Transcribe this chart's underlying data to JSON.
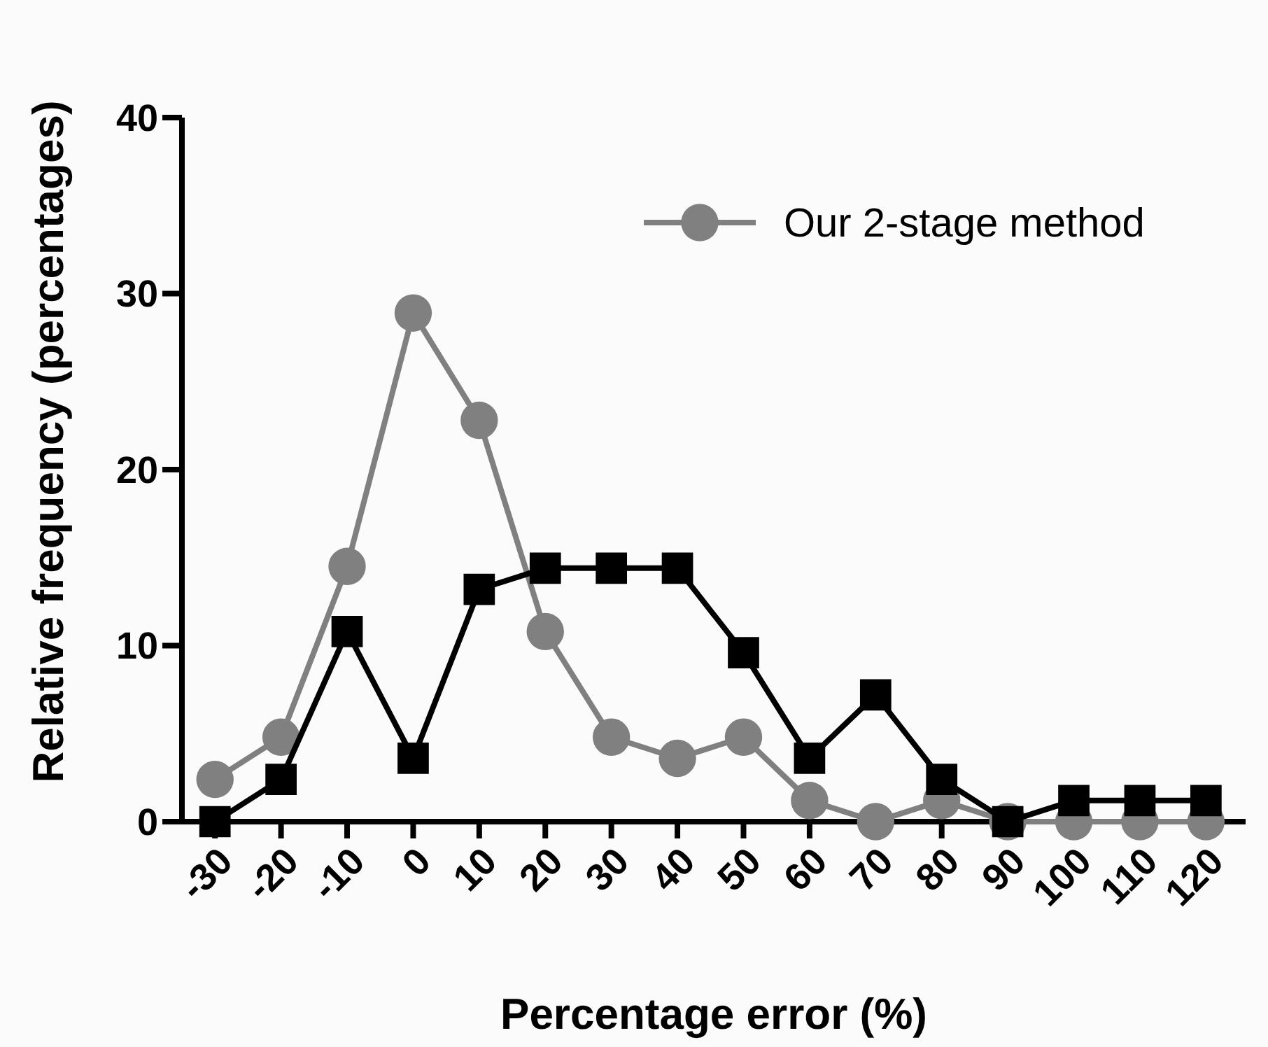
{
  "chart_data": {
    "type": "line",
    "xlabel": "Percentage error (%)",
    "ylabel": "Relative frequency (percentages)",
    "x": [
      -30,
      -20,
      -10,
      0,
      10,
      20,
      30,
      40,
      50,
      60,
      70,
      80,
      90,
      100,
      110,
      120
    ],
    "series": [
      {
        "color": "#000000",
        "marker": "square",
        "values": [
          0,
          2.4,
          10.8,
          3.6,
          13.2,
          14.4,
          14.4,
          14.4,
          9.6,
          3.6,
          7.2,
          2.4,
          0,
          1.2,
          1.2,
          1.2
        ]
      },
      {
        "name": "Our 2-stage method",
        "color": "#808080",
        "marker": "circle",
        "values": [
          2.4,
          4.8,
          14.5,
          28.9,
          22.8,
          10.8,
          4.8,
          3.6,
          4.8,
          1.2,
          0,
          1.2,
          0,
          0,
          0,
          0
        ]
      }
    ],
    "xlim": [
      -35,
      126
    ],
    "xticks": [
      -30,
      -20,
      -10,
      0,
      10,
      20,
      30,
      40,
      50,
      60,
      70,
      80,
      90,
      100,
      110,
      120
    ],
    "ylim": [
      0,
      40
    ],
    "yticks": [
      0,
      10,
      20,
      30,
      40
    ],
    "grid": false,
    "legend": "top right",
    "line_style": "solid"
  }
}
